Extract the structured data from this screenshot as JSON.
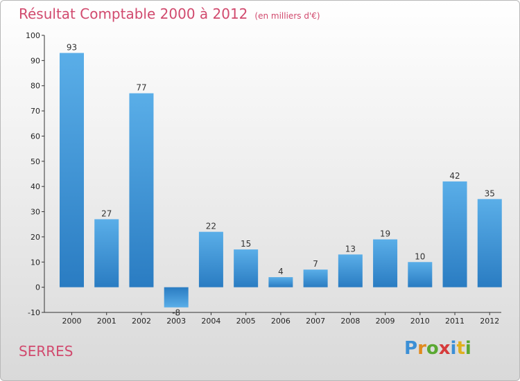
{
  "title": "Résultat Comptable 2000 à 2012",
  "unit": "(en milliers d'€)",
  "commune": "SERRES",
  "brand": {
    "letters": [
      "P",
      "r",
      "o",
      "x",
      "i",
      "t",
      "i"
    ],
    "colors": [
      "#3b8fd6",
      "#e08a1e",
      "#5aa832",
      "#d63b3b",
      "#3b8fd6",
      "#e0b01e",
      "#5aa832"
    ]
  },
  "colors": {
    "title": "#d14a6e",
    "bar_top": "#5aaee8",
    "bar_bottom": "#2a7cc2"
  },
  "chart_data": {
    "type": "bar",
    "title": "Résultat Comptable 2000 à 2012",
    "ylabel": "(en milliers d'€)",
    "xlabel": "",
    "categories": [
      "2000",
      "2001",
      "2002",
      "2003",
      "2004",
      "2005",
      "2006",
      "2007",
      "2008",
      "2009",
      "2010",
      "2011",
      "2012"
    ],
    "values": [
      93,
      27,
      77,
      -8,
      22,
      15,
      4,
      7,
      13,
      19,
      10,
      42,
      35
    ],
    "ylim": [
      -10,
      100
    ],
    "yticks": [
      -10,
      0,
      10,
      20,
      30,
      40,
      50,
      60,
      70,
      80,
      90,
      100
    ],
    "grid": false,
    "legend": "none"
  }
}
